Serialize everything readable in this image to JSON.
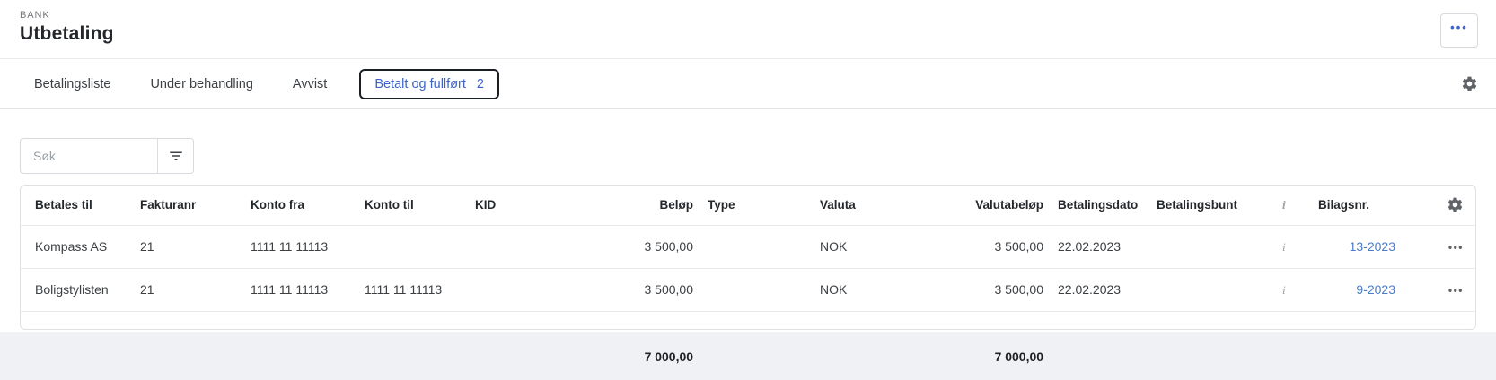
{
  "colors": {
    "accent_blue": "#3c63c8",
    "link_blue": "#4a7bc8",
    "footer_bg": "#eff1f4"
  },
  "header": {
    "eyebrow": "BANK",
    "title": "Utbetaling",
    "more_button_label": "•••"
  },
  "tabs": {
    "items": [
      {
        "label": "Betalingsliste",
        "active": false
      },
      {
        "label": "Under behandling",
        "active": false
      },
      {
        "label": "Avvist",
        "active": false
      },
      {
        "label": "Betalt og fullført",
        "count": "2",
        "active": true
      }
    ]
  },
  "toolbar": {
    "search_placeholder": "Søk",
    "search_value": ""
  },
  "icons": {
    "tab_settings": "gear",
    "table_settings": "gear",
    "filter": "filter-lines",
    "row_actions": "ellipsis",
    "info_column": "info"
  },
  "table": {
    "columns": [
      {
        "label": "Betales til"
      },
      {
        "label": "Fakturanr"
      },
      {
        "label": "Konto fra"
      },
      {
        "label": "Konto til"
      },
      {
        "label": "KID"
      },
      {
        "label": "Beløp"
      },
      {
        "label": "Type"
      },
      {
        "label": "Valuta"
      },
      {
        "label": "Valutabeløp"
      },
      {
        "label": "Betalingsdato"
      },
      {
        "label": "Betalingsbunt"
      },
      {
        "label": "i"
      },
      {
        "label": "Bilagsnr."
      },
      {
        "label": ""
      }
    ],
    "rows": [
      {
        "betales_til": "Kompass AS",
        "fakturanr": "21",
        "konto_fra": "1111 11 11113",
        "konto_til": "",
        "kid": "",
        "belop": "3 500,00",
        "type": "",
        "valuta": "NOK",
        "valutabelop": "3 500,00",
        "betalingsdato": "22.02.2023",
        "betalingsbunt": "",
        "info": "i",
        "bilagsnr": "13-2023",
        "actions": "•••"
      },
      {
        "betales_til": "Boligstylisten",
        "fakturanr": "21",
        "konto_fra": "1111 11 11113",
        "konto_til": "1111 11 11113",
        "kid": "",
        "belop": "3 500,00",
        "type": "",
        "valuta": "NOK",
        "valutabelop": "3 500,00",
        "betalingsdato": "22.02.2023",
        "betalingsbunt": "",
        "info": "i",
        "bilagsnr": "9-2023",
        "actions": "•••"
      }
    ],
    "totals": {
      "belop": "7 000,00",
      "valutabelop": "7 000,00"
    }
  }
}
